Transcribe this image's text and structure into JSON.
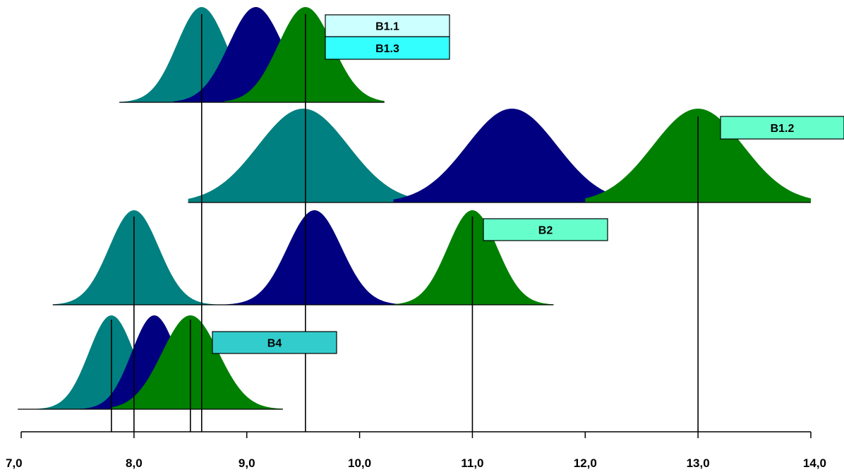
{
  "chart_data": {
    "type": "area",
    "title": "",
    "xlabel": "",
    "ylabel": "",
    "xlim": [
      7.0,
      14.0
    ],
    "x_ticks": [
      7.0,
      8.0,
      9.0,
      10.0,
      11.0,
      12.0,
      13.0,
      14.0
    ],
    "x_tick_labels": [
      "7,0",
      "8,0",
      "9,0",
      "10,0",
      "11,0",
      "12,0",
      "13,0",
      "14,0"
    ],
    "grid": false,
    "legend": "none",
    "colors": {
      "teal": "#008080",
      "navy": "#000080",
      "green": "#008000"
    },
    "rows": [
      {
        "label": "B1.1",
        "label_fill": "#ccffff",
        "distributions": [
          {
            "color": "teal",
            "mean": 8.6,
            "sd": 0.22,
            "xmin": 7.87,
            "xmax": 9.3
          },
          {
            "color": "navy",
            "mean": 9.08,
            "sd": 0.24,
            "xmin": 8.35,
            "xmax": 9.8
          },
          {
            "color": "green",
            "mean": 9.52,
            "sd": 0.24,
            "xmin": 8.8,
            "xmax": 10.22
          }
        ],
        "vlines": [
          8.6,
          9.52
        ]
      },
      {
        "label": "B1.3",
        "label_fill": "#33ffff",
        "distributions": [],
        "vlines": []
      },
      {
        "label": "B1.2",
        "label_fill": "#66ffcc",
        "distributions": [
          {
            "color": "teal",
            "mean": 9.5,
            "sd": 0.4,
            "xmin": 8.48,
            "xmax": 10.6
          },
          {
            "color": "navy",
            "mean": 11.35,
            "sd": 0.4,
            "xmin": 10.3,
            "xmax": 12.45
          },
          {
            "color": "green",
            "mean": 13.0,
            "sd": 0.4,
            "xmin": 12.0,
            "xmax": 14.0
          }
        ],
        "vlines": [
          8.6,
          9.52,
          13.0
        ]
      },
      {
        "label": "B2",
        "label_fill": "#66ffcc",
        "distributions": [
          {
            "color": "teal",
            "mean": 8.0,
            "sd": 0.22,
            "xmin": 7.28,
            "xmax": 8.72
          },
          {
            "color": "navy",
            "mean": 9.6,
            "sd": 0.24,
            "xmin": 8.76,
            "xmax": 10.4
          },
          {
            "color": "green",
            "mean": 11.0,
            "sd": 0.22,
            "xmin": 10.3,
            "xmax": 11.72
          }
        ],
        "vlines": [
          8.0,
          8.6,
          9.52,
          11.0,
          13.0
        ]
      },
      {
        "label": "B4",
        "label_fill": "#33cccc",
        "distributions": [
          {
            "color": "teal",
            "mean": 7.8,
            "sd": 0.2,
            "xmin": 6.97,
            "xmax": 8.5
          },
          {
            "color": "navy",
            "mean": 8.18,
            "sd": 0.2,
            "xmin": 7.5,
            "xmax": 8.9
          },
          {
            "color": "green",
            "mean": 8.5,
            "sd": 0.25,
            "xmin": 7.8,
            "xmax": 9.32
          }
        ],
        "vlines": [
          7.8,
          8.0,
          8.5,
          8.6,
          9.52,
          11.0,
          13.0
        ]
      }
    ]
  }
}
